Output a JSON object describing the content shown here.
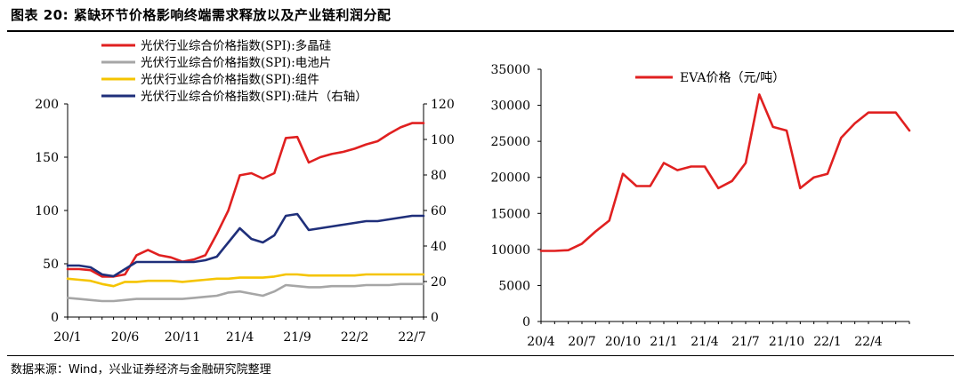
{
  "figure": {
    "title": "图表 20:  紧缺环节价格影响终端需求释放以及产业链利润分配",
    "source": "数据来源：Wind，兴业证券经济与金融研究院整理"
  },
  "chart_data": [
    {
      "type": "line",
      "x": [
        "20/1",
        "20/2",
        "20/3",
        "20/4",
        "20/5",
        "20/6",
        "20/7",
        "20/8",
        "20/9",
        "20/10",
        "20/11",
        "20/12",
        "21/1",
        "21/2",
        "21/3",
        "21/4",
        "21/5",
        "21/6",
        "21/7",
        "21/8",
        "21/9",
        "21/10",
        "21/11",
        "21/12",
        "22/1",
        "22/2",
        "22/3",
        "22/4",
        "22/5",
        "22/6",
        "22/7",
        "22/8"
      ],
      "x_ticks": [
        "20/1",
        "20/6",
        "20/11",
        "21/4",
        "21/9",
        "22/2",
        "22/7"
      ],
      "ylim_left": [
        0,
        200
      ],
      "yticks_left": [
        0,
        50,
        100,
        150,
        200
      ],
      "ylim_right": [
        0,
        120
      ],
      "yticks_right": [
        0,
        20,
        40,
        60,
        80,
        100,
        120
      ],
      "legend_position": "top-right",
      "series": [
        {
          "name": "光伏行业综合价格指数(SPI):多晶硅",
          "axis": "left",
          "color": "#e02020",
          "values": [
            45,
            45,
            44,
            38,
            38,
            40,
            58,
            63,
            58,
            56,
            52,
            54,
            58,
            78,
            100,
            133,
            135,
            130,
            135,
            168,
            169,
            145,
            150,
            153,
            155,
            158,
            162,
            165,
            172,
            178,
            182,
            182
          ]
        },
        {
          "name": "光伏行业综合价格指数(SPI):电池片",
          "axis": "left",
          "color": "#a6a6a6",
          "values": [
            18,
            17,
            16,
            15,
            15,
            16,
            17,
            17,
            17,
            17,
            17,
            18,
            19,
            20,
            23,
            24,
            22,
            20,
            24,
            30,
            29,
            28,
            28,
            29,
            29,
            29,
            30,
            30,
            30,
            31,
            31,
            31
          ]
        },
        {
          "name": "光伏行业综合价格指数(SPI):组件",
          "axis": "left",
          "color": "#f5c400",
          "values": [
            36,
            35,
            34,
            31,
            29,
            33,
            33,
            34,
            34,
            34,
            33,
            34,
            35,
            36,
            36,
            37,
            37,
            37,
            38,
            40,
            40,
            39,
            39,
            39,
            39,
            39,
            40,
            40,
            40,
            40,
            40,
            40
          ]
        },
        {
          "name": "光伏行业综合价格指数(SPI):硅片（右轴）",
          "axis": "right",
          "color": "#1f2f7a",
          "values": [
            29,
            29,
            28,
            24,
            23,
            27,
            31,
            31,
            31,
            31,
            31,
            31,
            32,
            34,
            42,
            50,
            44,
            42,
            46,
            57,
            58,
            49,
            50,
            51,
            52,
            53,
            54,
            54,
            55,
            56,
            57,
            57
          ]
        }
      ]
    },
    {
      "type": "line",
      "x": [
        "20/4",
        "20/5",
        "20/6",
        "20/7",
        "20/8",
        "20/9",
        "20/10",
        "20/11",
        "20/12",
        "21/1",
        "21/2",
        "21/3",
        "21/4",
        "21/5",
        "21/6",
        "21/7",
        "21/8",
        "21/9",
        "21/10",
        "21/11",
        "21/12",
        "22/1",
        "22/2",
        "22/3",
        "22/4",
        "22/5",
        "22/6",
        "22/7"
      ],
      "x_ticks": [
        "20/4",
        "20/7",
        "20/10",
        "21/1",
        "21/4",
        "21/7",
        "21/10",
        "22/1",
        "22/4"
      ],
      "ylim": [
        0,
        35000
      ],
      "yticks": [
        0,
        5000,
        10000,
        15000,
        20000,
        25000,
        30000,
        35000
      ],
      "legend_position": "top-left",
      "series": [
        {
          "name": "EVA价格（元/吨）",
          "color": "#e02020",
          "values": [
            9800,
            9800,
            9900,
            10800,
            12500,
            14000,
            20500,
            18800,
            18800,
            22000,
            21000,
            21500,
            21500,
            18500,
            19500,
            22000,
            31500,
            27000,
            26500,
            18500,
            20000,
            20500,
            25500,
            27500,
            29000,
            29000,
            29000,
            26500
          ]
        }
      ]
    }
  ]
}
